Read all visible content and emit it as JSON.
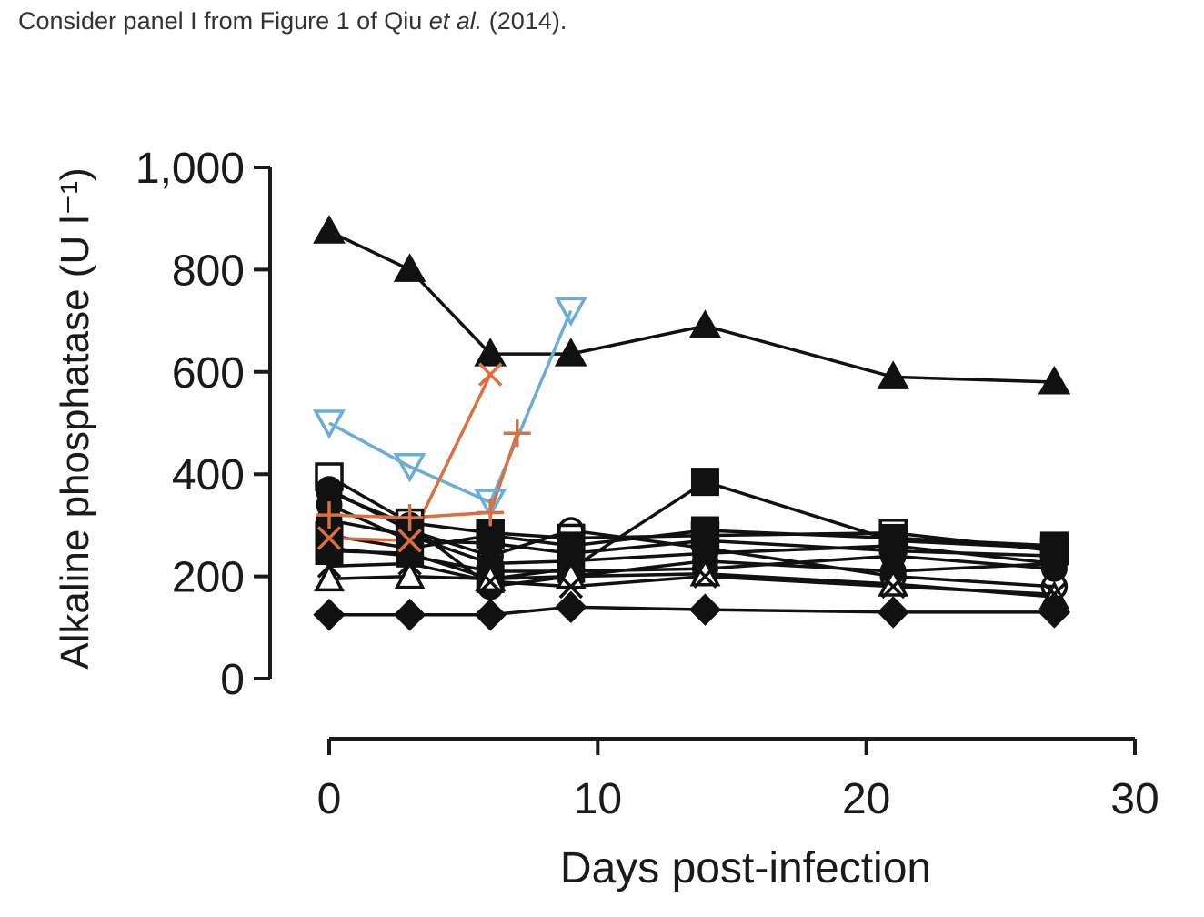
{
  "caption": {
    "prefix": "Consider panel I from Figure 1 of Qiu ",
    "italic": "et al.",
    "suffix": " (2014)."
  },
  "chart_data": {
    "type": "line",
    "title": "",
    "xlabel": "Days post-infection",
    "ylabel": "Alkaline phosphatase (U l⁻¹)",
    "xlim": [
      0,
      30
    ],
    "ylim": [
      0,
      1000
    ],
    "x_ticks": [
      0,
      10,
      20,
      30
    ],
    "x_tick_labels": [
      "0",
      "10",
      "20",
      "30"
    ],
    "y_ticks": [
      0,
      200,
      400,
      600,
      800,
      1000
    ],
    "y_tick_labels": [
      "0",
      "200",
      "400",
      "600",
      "800",
      "1,000"
    ],
    "grid": false,
    "legend": "none",
    "series_colors": {
      "black": "#111111",
      "blue": "#6aaed6",
      "orange": "#d9703f"
    },
    "series": [
      {
        "color": "#111111",
        "marker": "triangle-filled",
        "x": [
          0,
          3,
          6,
          9,
          14,
          21,
          27
        ],
        "y": [
          875,
          800,
          635,
          635,
          690,
          590,
          580
        ]
      },
      {
        "color": "#111111",
        "marker": "square-filled",
        "x": [
          0,
          3,
          6,
          9,
          14,
          21,
          27
        ],
        "y": [
          250,
          245,
          195,
          215,
          385,
          270,
          255
        ]
      },
      {
        "color": "#111111",
        "marker": "square-open",
        "x": [
          0,
          3,
          6,
          9,
          14,
          21,
          27
        ],
        "y": [
          395,
          305,
          285,
          275,
          280,
          285,
          250
        ]
      },
      {
        "color": "#111111",
        "marker": "circle-filled",
        "x": [
          0,
          3,
          6,
          9,
          14,
          21,
          27
        ],
        "y": [
          340,
          270,
          265,
          245,
          270,
          250,
          240
        ]
      },
      {
        "color": "#111111",
        "marker": "circle-filled",
        "x": [
          0,
          3,
          6,
          9,
          14,
          21,
          27
        ],
        "y": [
          365,
          300,
          180,
          200,
          230,
          210,
          225
        ]
      },
      {
        "color": "#111111",
        "marker": "circle-open",
        "x": [
          0,
          3,
          6,
          9,
          14,
          21,
          27
        ],
        "y": [
          370,
          290,
          240,
          290,
          255,
          200,
          180
        ]
      },
      {
        "color": "#111111",
        "marker": "circle-filled",
        "x": [
          0,
          3,
          6,
          9,
          14,
          21,
          27
        ],
        "y": [
          310,
          280,
          225,
          230,
          245,
          260,
          225
        ]
      },
      {
        "color": "#111111",
        "marker": "square-filled",
        "x": [
          0,
          3,
          6,
          9,
          14,
          21,
          27
        ],
        "y": [
          280,
          255,
          280,
          260,
          290,
          275,
          260
        ]
      },
      {
        "color": "#111111",
        "marker": "circle-filled",
        "x": [
          0,
          3,
          6,
          9,
          14,
          21,
          27
        ],
        "y": [
          255,
          240,
          210,
          210,
          215,
          240,
          215
        ]
      },
      {
        "color": "#111111",
        "marker": "triangle-open",
        "x": [
          0,
          3,
          6,
          9,
          14,
          21,
          27
        ],
        "y": [
          195,
          200,
          195,
          200,
          205,
          185,
          160
        ]
      },
      {
        "color": "#111111",
        "marker": "x",
        "x": [
          0,
          3,
          6,
          9,
          14,
          21,
          27
        ],
        "y": [
          220,
          225,
          190,
          180,
          200,
          180,
          165
        ]
      },
      {
        "color": "#111111",
        "marker": "diamond-filled",
        "x": [
          0,
          3,
          6,
          9,
          14,
          21,
          27
        ],
        "y": [
          125,
          125,
          125,
          140,
          135,
          130,
          130
        ]
      },
      {
        "color": "#6aaed6",
        "marker": "triangle-down-open",
        "x": [
          0,
          3,
          6,
          9
        ],
        "y": [
          500,
          415,
          345,
          720
        ]
      },
      {
        "color": "#d9703f",
        "marker": "x",
        "x": [
          0,
          3,
          6
        ],
        "y": [
          275,
          270,
          595
        ]
      },
      {
        "color": "#d9703f",
        "marker": "plus",
        "x": [
          0,
          3,
          6,
          7
        ],
        "y": [
          320,
          315,
          325,
          480
        ]
      }
    ]
  }
}
